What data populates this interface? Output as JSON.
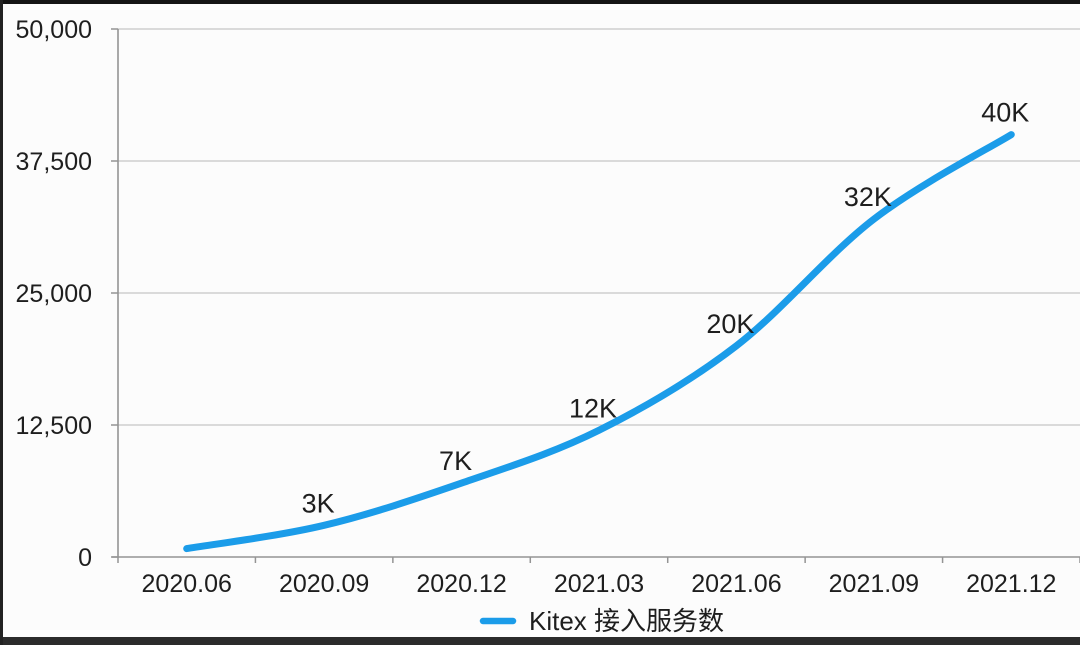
{
  "page": {
    "background": "#fcfcfc",
    "top_bar_color": "#141414",
    "bottom_bar_color": "#2b2b2b",
    "left_strip_color": "#222222"
  },
  "chart_data": {
    "type": "line",
    "title": "",
    "categories": [
      "2020.06",
      "2020.09",
      "2020.12",
      "2021.03",
      "2021.06",
      "2021.09",
      "2021.12"
    ],
    "series": [
      {
        "name": "Kitex 接入服务数",
        "color": "#1b9ce9",
        "values": [
          800,
          3000,
          7000,
          12000,
          20000,
          32000,
          40000
        ],
        "point_labels": [
          "",
          "3K",
          "7K",
          "12K",
          "20K",
          "32K",
          "40K"
        ]
      }
    ],
    "ylim": [
      0,
      50000
    ],
    "yticks": [
      0,
      12500,
      25000,
      37500,
      50000
    ],
    "ytick_labels": [
      "0",
      "12,500",
      "25,000",
      "37,500",
      "50,000"
    ],
    "xlabel": "",
    "ylabel": "",
    "grid": true,
    "legend_position": "bottom",
    "text_color": "#1e1e1e",
    "grid_color": "#c6c6c6",
    "axis_color": "#949494"
  },
  "legend": {
    "label": "Kitex 接入服务数",
    "marker_color": "#1b9ce9"
  }
}
